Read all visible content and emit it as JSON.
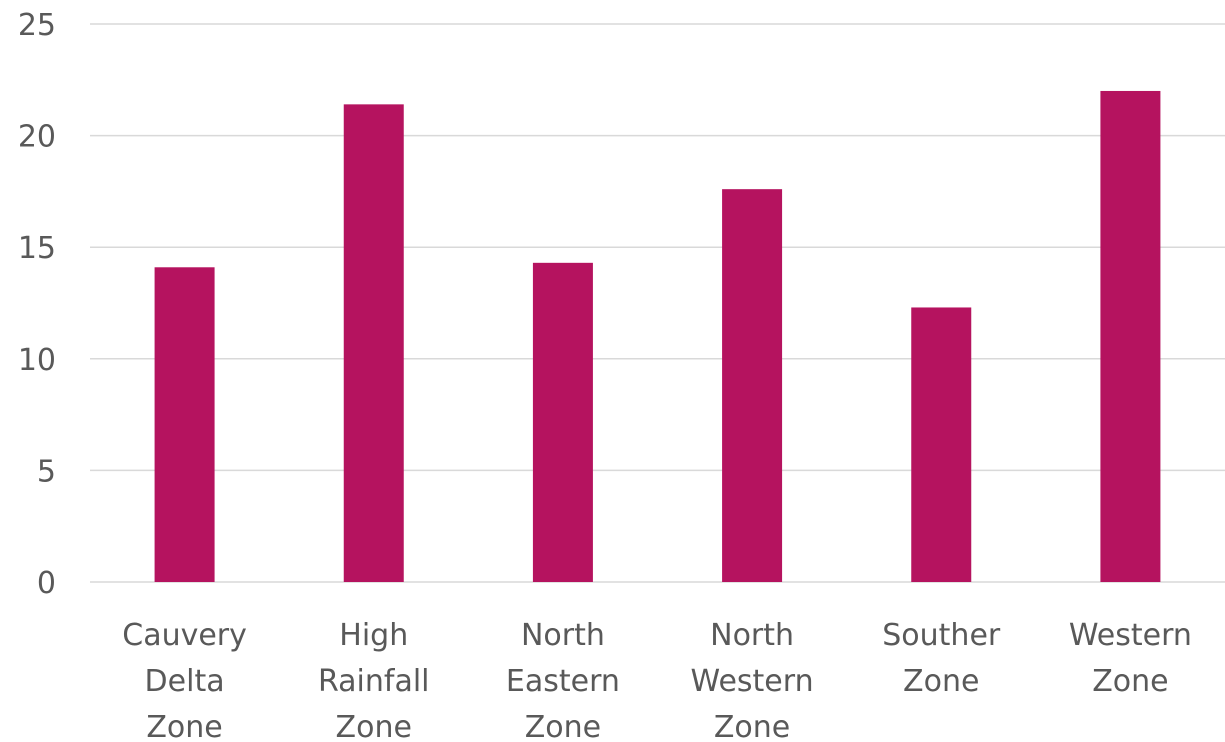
{
  "chart_data": {
    "type": "bar",
    "title": "",
    "xlabel": "",
    "ylabel": "",
    "categories": [
      [
        "Cauvery",
        "Delta",
        "Zone"
      ],
      [
        "High",
        "Rainfall",
        "Zone"
      ],
      [
        "North",
        "Eastern",
        "Zone"
      ],
      [
        "North",
        "Western",
        "Zone"
      ],
      [
        "Souther",
        "Zone"
      ],
      [
        "Western",
        "Zone"
      ]
    ],
    "values": [
      14.1,
      21.4,
      14.3,
      17.6,
      12.3,
      22.0
    ],
    "ylim": [
      0,
      25
    ],
    "yticks": [
      "0",
      "5",
      "10",
      "15",
      "20",
      "25"
    ],
    "grid": true,
    "legend": false,
    "bar_color": "#b5135f"
  }
}
